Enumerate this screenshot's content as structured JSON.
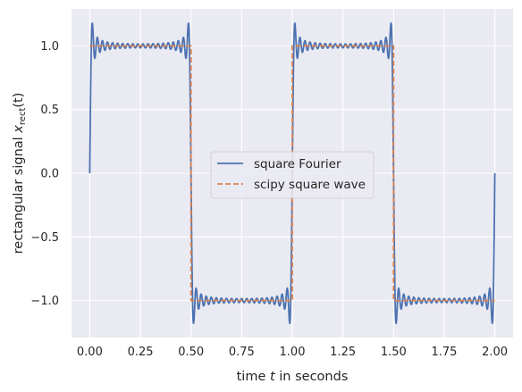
{
  "chart_data": {
    "type": "line",
    "title": "",
    "xlabel": {
      "pre": "time ",
      "var": "t",
      "post": " in seconds"
    },
    "ylabel": {
      "pre": "rectangular signal ",
      "var": "x",
      "sub": "rect",
      "arg": "(t)"
    },
    "xlim": [
      -0.09,
      2.09
    ],
    "ylim": [
      -1.29,
      1.29
    ],
    "xticks": [
      0.0,
      0.25,
      0.5,
      0.75,
      1.0,
      1.25,
      1.5,
      1.75,
      2.0
    ],
    "xtick_labels": [
      "0.00",
      "0.25",
      "0.50",
      "0.75",
      "1.00",
      "1.25",
      "1.50",
      "1.75",
      "2.00"
    ],
    "yticks": [
      -1.0,
      -0.5,
      0.0,
      0.5,
      1.0
    ],
    "ytick_labels": [
      "−1.0",
      "−0.5",
      "0.0",
      "0.5",
      "1.0"
    ],
    "grid": true,
    "legend_position": "center",
    "series": [
      {
        "name": "square Fourier",
        "style": "solid",
        "color": "#4c72b0",
        "function": "truncated Fourier series of a 1 Hz square wave (odd harmonics 1 to 39)",
        "x_range": [
          0.0,
          2.0
        ],
        "samples": 2001
      },
      {
        "name": "scipy square wave",
        "style": "dashed",
        "color": "#dd8452",
        "x": [
          0.0,
          0.5,
          0.5,
          1.0,
          1.0,
          1.5,
          1.5,
          2.0
        ],
        "y": [
          1.0,
          1.0,
          -1.0,
          -1.0,
          1.0,
          1.0,
          -1.0,
          -1.0
        ]
      }
    ]
  },
  "colors": {
    "plot_background": "#eaeaf2",
    "grid": "#ffffff",
    "text": "#262626"
  }
}
